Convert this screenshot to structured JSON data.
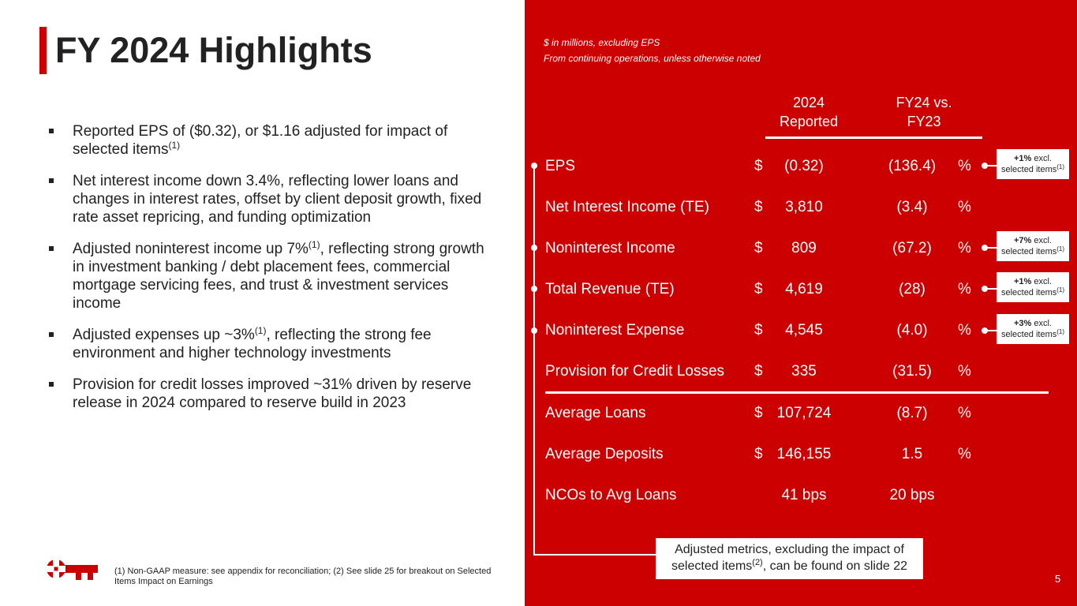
{
  "title": "FY 2024 Highlights",
  "bullets": [
    {
      "text": "Reported EPS of ($0.32), or $1.16 adjusted for impact of selected items",
      "sup": "(1)",
      "tail": ""
    },
    {
      "text": "Net interest income down 3.4%, reflecting lower loans and changes in interest rates, offset by client deposit growth, fixed rate asset repricing, and funding optimization",
      "sup": "",
      "tail": ""
    },
    {
      "text": "Adjusted noninterest income up 7%",
      "sup": "(1)",
      "tail": ", reflecting strong growth in investment banking / debt placement fees, commercial mortgage servicing fees, and trust & investment services income"
    },
    {
      "text": "Adjusted expenses up ~3%",
      "sup": "(1)",
      "tail": ", reflecting the strong fee environment and higher technology investments"
    },
    {
      "text": "Provision for credit losses improved ~31% driven by reserve release in 2024 compared to reserve build in 2023",
      "sup": "",
      "tail": ""
    }
  ],
  "footnote": "(1) Non-GAAP measure: see appendix for reconciliation; (2) See slide 25 for breakout on Selected Items Impact on Earnings",
  "notes": {
    "line1": "$ in millions, excluding EPS",
    "line2": "From continuing operations, unless otherwise noted"
  },
  "columns": {
    "reported_line1": "2024",
    "reported_line2": "Reported",
    "change_line1": "FY24 vs.",
    "change_line2": "FY23"
  },
  "rows": [
    {
      "label": "EPS",
      "dollar": "$",
      "value": "(0.32)",
      "change": "(136.4)",
      "pct": "%"
    },
    {
      "label": "Net Interest Income (TE)",
      "dollar": "$",
      "value": "3,810",
      "change": "(3.4)",
      "pct": "%"
    },
    {
      "label": "Noninterest Income",
      "dollar": "$",
      "value": "809",
      "change": "(67.2)",
      "pct": "%"
    },
    {
      "label": "Total Revenue (TE)",
      "dollar": "$",
      "value": "4,619",
      "change": "(28)",
      "pct": "%"
    },
    {
      "label": "Noninterest Expense",
      "dollar": "$",
      "value": "4,545",
      "change": "(4.0)",
      "pct": "%"
    },
    {
      "label": "Provision for Credit Losses",
      "dollar": "$",
      "value": "335",
      "change": "(31.5)",
      "pct": "%"
    },
    {
      "label": "Average Loans",
      "dollar": "$",
      "value": "107,724",
      "change": "(8.7)",
      "pct": "%"
    },
    {
      "label": "Average Deposits",
      "dollar": "$",
      "value": "146,155",
      "change": "1.5",
      "pct": "%"
    },
    {
      "label": "NCOs to Avg Loans",
      "dollar": "",
      "value": "41 bps",
      "change": "20 bps",
      "pct": ""
    }
  ],
  "callouts": [
    {
      "bold": "+1%",
      "rest": " excl.",
      "line2": "selected items",
      "sup": "(1)"
    },
    {
      "bold": "+7%",
      "rest": " excl.",
      "line2": "selected items",
      "sup": "(1)"
    },
    {
      "bold": "+1%",
      "rest": " excl.",
      "line2": "selected items",
      "sup": "(1)"
    },
    {
      "bold": "+3%",
      "rest": " excl.",
      "line2": "selected items",
      "sup": "(1)"
    }
  ],
  "adjusted_box": {
    "line1": "Adjusted metrics, excluding the impact of",
    "line2a": "selected items",
    "sup": "(2)",
    "line2b": ", can be found on slide 22"
  },
  "page_number": "5",
  "colors": {
    "brand_red": "#cc0000",
    "text_dark": "#222222",
    "white": "#ffffff"
  },
  "icons": {
    "logo": "key-logo-icon"
  }
}
